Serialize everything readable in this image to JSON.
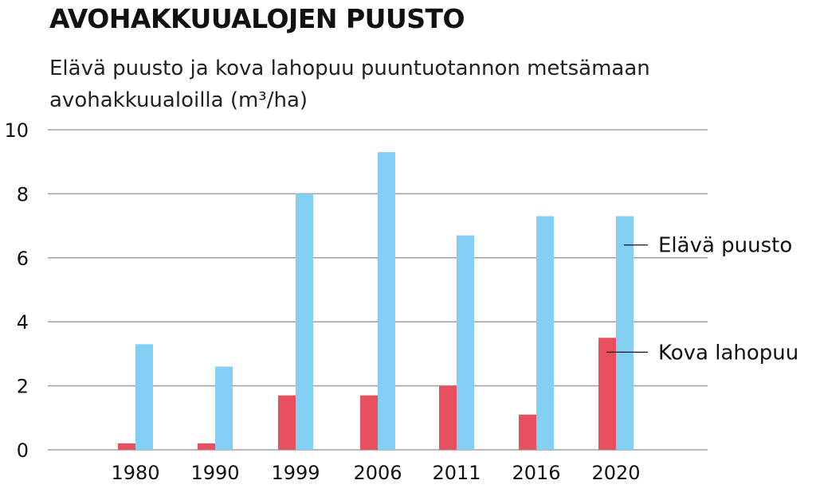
{
  "chart_data": {
    "type": "bar",
    "title": "AVOHAKKUUALOJEN PUUSTO",
    "subtitle": "Elävä puusto ja kova lahopuu puuntuotannon metsämaan avohakkuualoilla (m³/ha)",
    "categories": [
      "1980",
      "1990",
      "1999",
      "2006",
      "2011",
      "2016",
      "2020"
    ],
    "series": [
      {
        "name": "Kova lahopuu",
        "color": "#e8505f",
        "values": [
          0.2,
          0.2,
          1.7,
          1.7,
          2.0,
          1.1,
          3.5
        ]
      },
      {
        "name": "Elävä puusto",
        "color": "#84cff4",
        "values": [
          3.3,
          2.6,
          8.0,
          9.3,
          6.7,
          7.3,
          7.3
        ]
      }
    ],
    "yticks": [
      0,
      2,
      4,
      6,
      8,
      10
    ],
    "ylim": [
      0,
      10
    ],
    "grid": true,
    "legend": "right, labels at bar ends"
  }
}
